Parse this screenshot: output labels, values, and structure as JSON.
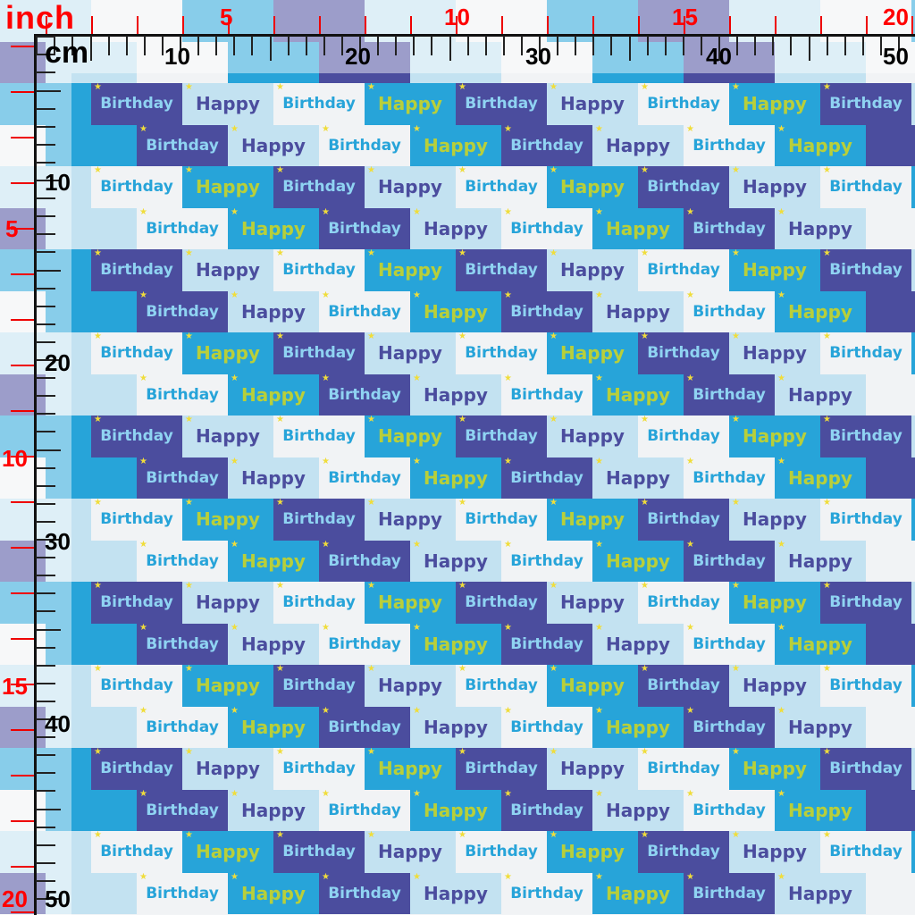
{
  "rulers": {
    "inch_unit": "inch",
    "cm_unit": "cm",
    "top_inch_labels": [
      "5",
      "10",
      "15",
      "20"
    ],
    "top_cm_labels": [
      "10",
      "20",
      "30",
      "40",
      "50"
    ],
    "left_inch_labels": [
      "5",
      "10",
      "15",
      "20"
    ],
    "left_cm_labels": [
      "10",
      "20",
      "30",
      "40",
      "50"
    ]
  },
  "pattern": {
    "words": [
      "Happy",
      "Birthday"
    ],
    "colors": {
      "light_blue": "#c3e2f1",
      "white": "#f1f3f5",
      "cyan": "#27a4d9",
      "indigo": "#4b4d9e",
      "lime": "#b8cf3a",
      "grey": "#a9b0b8",
      "star_yellow": "#f0dd3a"
    }
  }
}
